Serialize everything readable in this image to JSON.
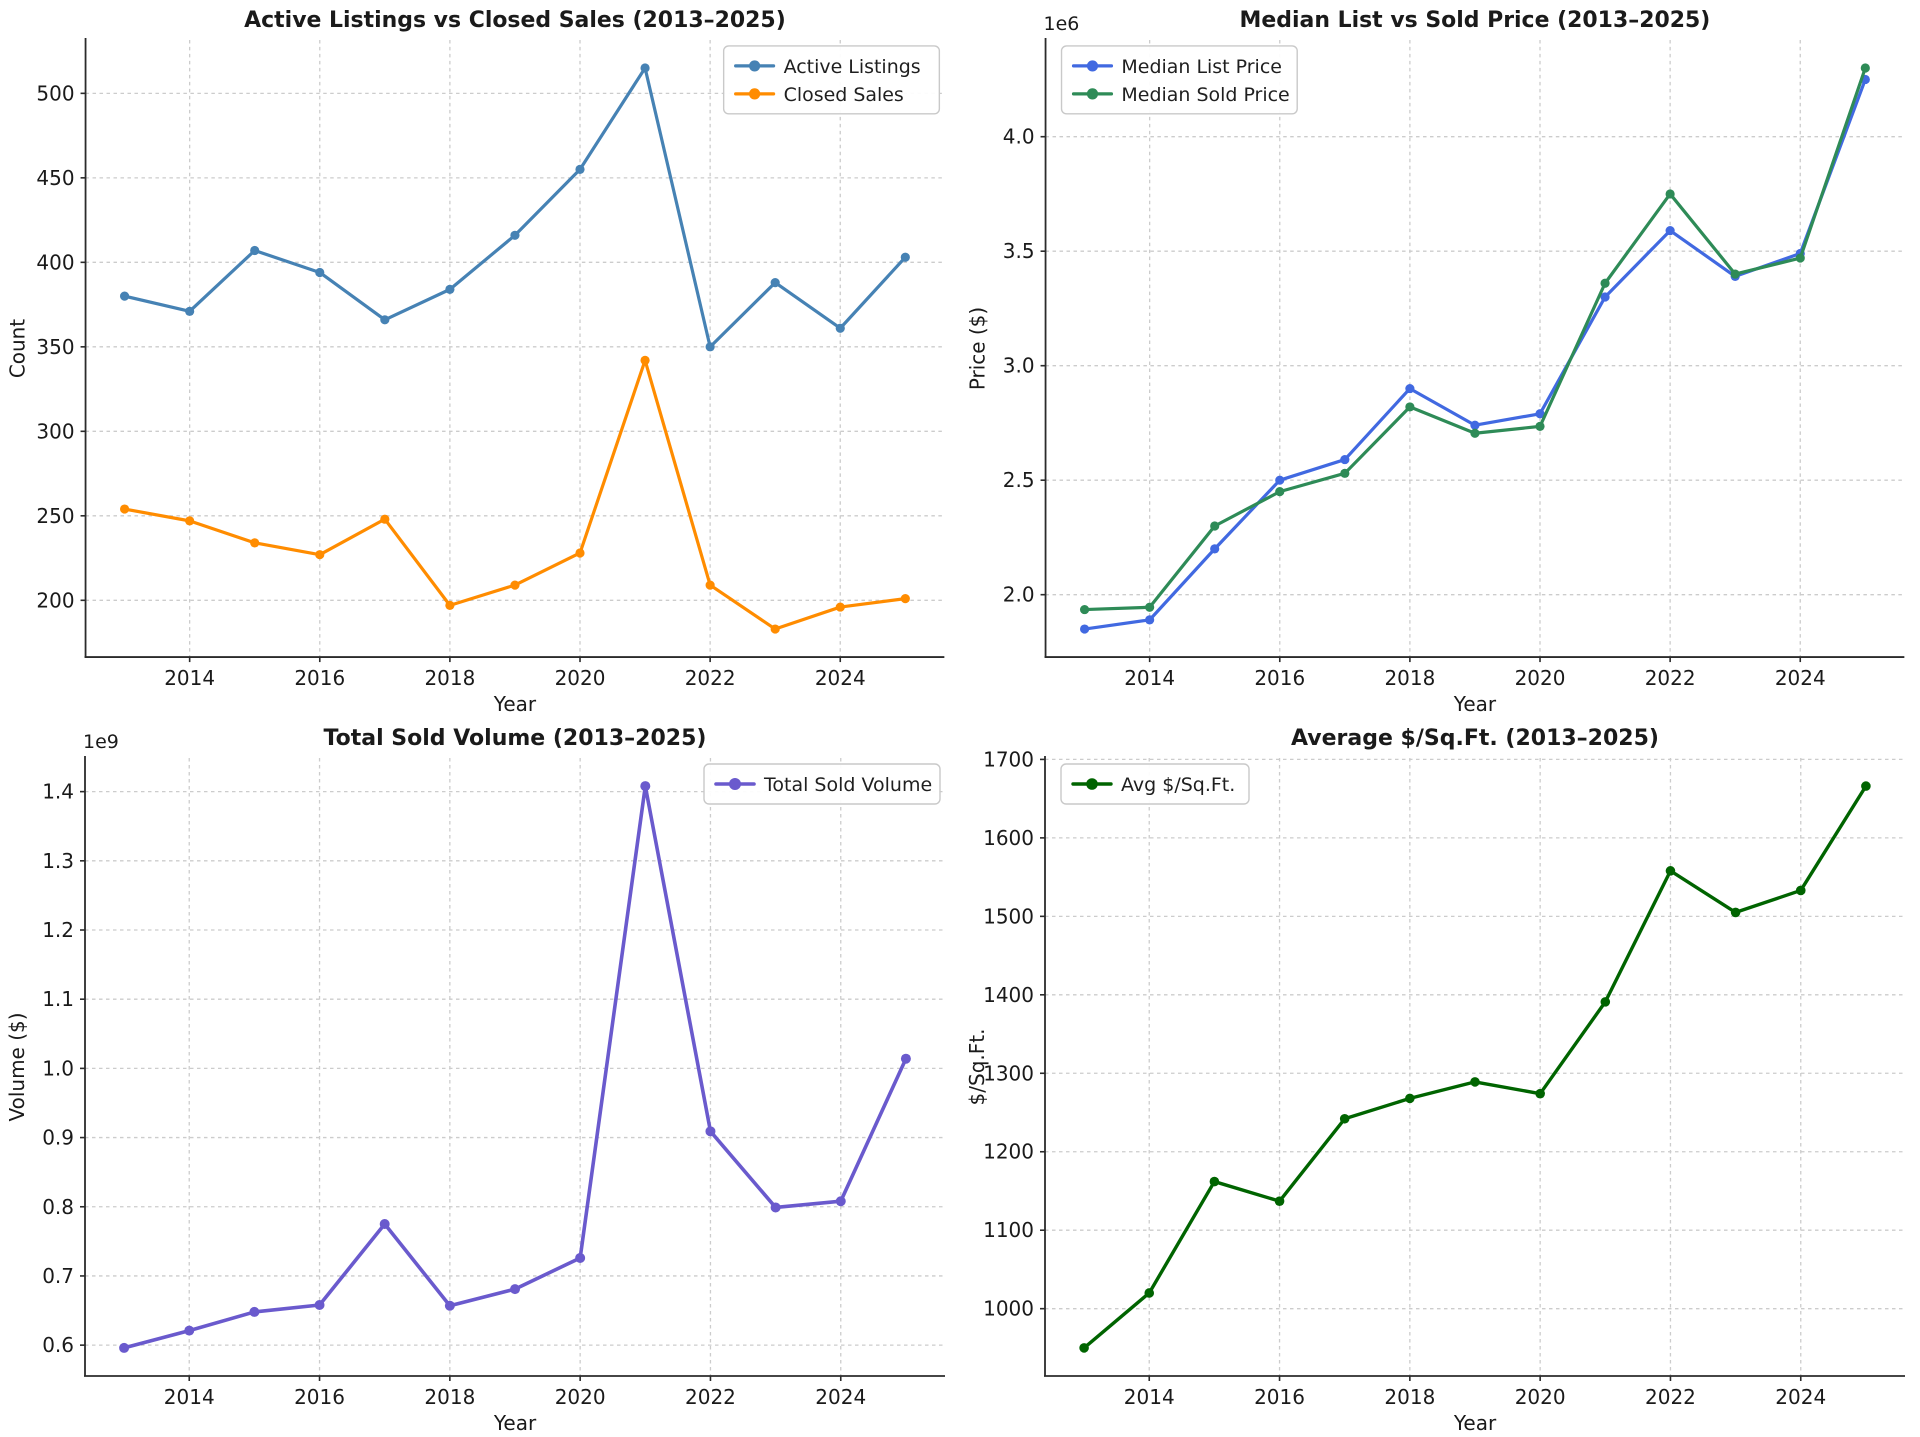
{
  "page": {
    "background": "#ffffff",
    "figure_type": "matplotlib-style 2x2 line chart dashboard"
  },
  "chart_data": [
    {
      "type": "line",
      "title": "Active Listings vs Closed Sales (2013–2025)",
      "xlabel": "Year",
      "ylabel": "Count",
      "x": [
        2013,
        2014,
        2015,
        2016,
        2017,
        2018,
        2019,
        2020,
        2021,
        2022,
        2023,
        2024,
        2025
      ],
      "series": [
        {
          "name": "Active Listings",
          "color": "#4682B4",
          "values": [
            380,
            371,
            407,
            394,
            366,
            384,
            416,
            455,
            515,
            350,
            388,
            361,
            403
          ]
        },
        {
          "name": "Closed Sales",
          "color": "#FF8C00",
          "values": [
            254,
            247,
            234,
            227,
            248,
            197,
            209,
            228,
            342,
            209,
            183,
            196,
            201
          ]
        }
      ],
      "xlim": [
        2012.4,
        2025.6
      ],
      "ylim": [
        166.4,
        531.6
      ],
      "xticks": [
        2014,
        2016,
        2018,
        2020,
        2022,
        2024
      ],
      "ytick_values": [
        200,
        250,
        300,
        350,
        400,
        450,
        500
      ],
      "ytick_labels": [
        "200",
        "250",
        "300",
        "350",
        "400",
        "450",
        "500"
      ],
      "offset_label": "",
      "grid": true,
      "legend_position": "upper-right",
      "line_width": 3.2,
      "marker_radius": 4.6
    },
    {
      "type": "line",
      "title": "Median List vs Sold Price (2013–2025)",
      "xlabel": "Year",
      "ylabel": "Price ($)",
      "x": [
        2013,
        2014,
        2015,
        2016,
        2017,
        2018,
        2019,
        2020,
        2021,
        2022,
        2023,
        2024,
        2025
      ],
      "series": [
        {
          "name": "Median List Price",
          "color": "#4169E1",
          "values": [
            1850000,
            1890000,
            2200000,
            2500000,
            2590000,
            2900000,
            2740000,
            2790000,
            3300000,
            3590000,
            3390000,
            3490000,
            4250000
          ]
        },
        {
          "name": "Median Sold Price",
          "color": "#2E8B57",
          "values": [
            1935000,
            1945000,
            2300000,
            2450000,
            2530000,
            2820000,
            2705000,
            2735000,
            3360000,
            3750000,
            3400000,
            3470000,
            4300000
          ]
        }
      ],
      "xlim": [
        2012.4,
        2025.6
      ],
      "ylim": [
        1727500,
        4422500
      ],
      "xticks": [
        2014,
        2016,
        2018,
        2020,
        2022,
        2024
      ],
      "ytick_values": [
        2000000,
        2500000,
        3000000,
        3500000,
        4000000
      ],
      "ytick_labels": [
        "2.0",
        "2.5",
        "3.0",
        "3.5",
        "4.0"
      ],
      "offset_label": "1e6",
      "grid": true,
      "legend_position": "upper-left",
      "line_width": 3.2,
      "marker_radius": 4.6
    },
    {
      "type": "line",
      "title": "Total Sold Volume (2013–2025)",
      "xlabel": "Year",
      "ylabel": "Volume ($)",
      "x": [
        2013,
        2014,
        2015,
        2016,
        2017,
        2018,
        2019,
        2020,
        2021,
        2022,
        2023,
        2024,
        2025
      ],
      "series": [
        {
          "name": "Total Sold Volume",
          "color": "#6A5ACD",
          "values": [
            596000000,
            621000000,
            648000000,
            658000000,
            775000000,
            657000000,
            681000000,
            726000000,
            1408000000,
            909000000,
            799000000,
            808000000,
            1014000000
          ]
        }
      ],
      "xlim": [
        2012.4,
        2025.6
      ],
      "ylim": [
        555400000,
        1448600000
      ],
      "xticks": [
        2014,
        2016,
        2018,
        2020,
        2022,
        2024
      ],
      "ytick_values": [
        600000000,
        700000000,
        800000000,
        900000000,
        1000000000,
        1100000000,
        1200000000,
        1300000000,
        1400000000
      ],
      "ytick_labels": [
        "0.6",
        "0.7",
        "0.8",
        "0.9",
        "1.0",
        "1.1",
        "1.2",
        "1.3",
        "1.4"
      ],
      "offset_label": "1e9",
      "grid": true,
      "legend_position": "upper-right",
      "line_width": 3.6,
      "marker_radius": 5.0
    },
    {
      "type": "line",
      "title": "Average $/Sq.Ft. (2013–2025)",
      "xlabel": "Year",
      "ylabel": "$/Sq.Ft.",
      "x": [
        2013,
        2014,
        2015,
        2016,
        2017,
        2018,
        2019,
        2020,
        2021,
        2022,
        2023,
        2024,
        2025
      ],
      "series": [
        {
          "name": "Avg $/Sq.Ft.",
          "color": "#006400",
          "values": [
            950,
            1020,
            1162,
            1137,
            1242,
            1268,
            1289,
            1274,
            1391,
            1558,
            1505,
            1533,
            1666
          ]
        }
      ],
      "xlim": [
        2012.4,
        2025.6
      ],
      "ylim": [
        914.2,
        1701.8
      ],
      "xticks": [
        2014,
        2016,
        2018,
        2020,
        2022,
        2024
      ],
      "ytick_values": [
        1000,
        1100,
        1200,
        1300,
        1400,
        1500,
        1600,
        1700
      ],
      "ytick_labels": [
        "1000",
        "1100",
        "1200",
        "1300",
        "1400",
        "1500",
        "1600",
        "1700"
      ],
      "offset_label": "",
      "grid": true,
      "legend_position": "upper-left",
      "line_width": 3.4,
      "marker_radius": 4.8
    }
  ]
}
